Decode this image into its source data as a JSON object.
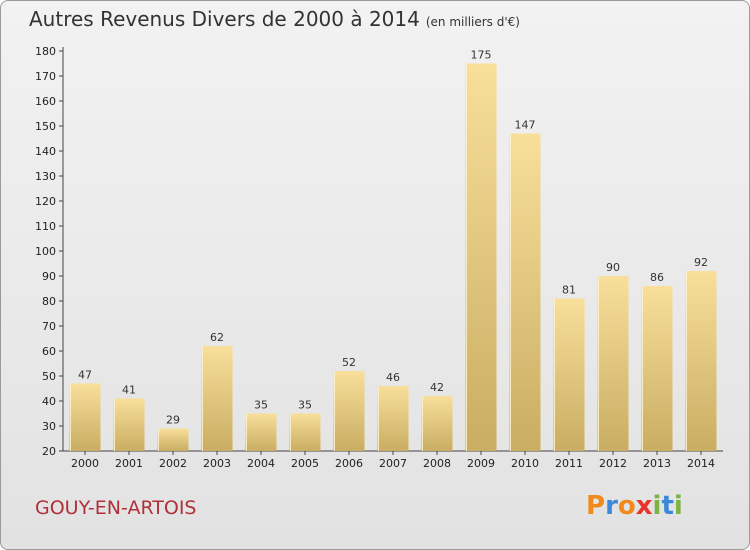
{
  "header": {
    "title": "Autres Revenus Divers de 2000 à 2014",
    "subtitle": "(en milliers d'€)"
  },
  "footer": {
    "location": "GOUY-EN-ARTOIS",
    "logo_text": "Proxiti",
    "logo_colors": [
      "#f08a1c",
      "#3b8ad9",
      "#f08a1c",
      "#e8342d",
      "#7cb342",
      "#3b8ad9",
      "#7cb342"
    ]
  },
  "colors": {
    "bar_light": "#f8df9a",
    "bar_dark": "#c9ad62",
    "location_text": "#b0303a"
  },
  "chart_data": {
    "type": "bar",
    "categories": [
      "2000",
      "2001",
      "2002",
      "2003",
      "2004",
      "2005",
      "2006",
      "2007",
      "2008",
      "2009",
      "2010",
      "2011",
      "2012",
      "2013",
      "2014"
    ],
    "values": [
      47,
      41,
      29,
      62,
      35,
      35,
      52,
      46,
      42,
      175,
      147,
      81,
      90,
      86,
      92
    ],
    "title": "Autres Revenus Divers de 2000 à 2014",
    "xlabel": "",
    "ylabel": "",
    "ylim": [
      20,
      180
    ],
    "yticks": [
      20,
      30,
      40,
      50,
      60,
      70,
      80,
      90,
      100,
      110,
      120,
      130,
      140,
      150,
      160,
      170,
      180
    ],
    "grid": false,
    "legend": "none"
  }
}
